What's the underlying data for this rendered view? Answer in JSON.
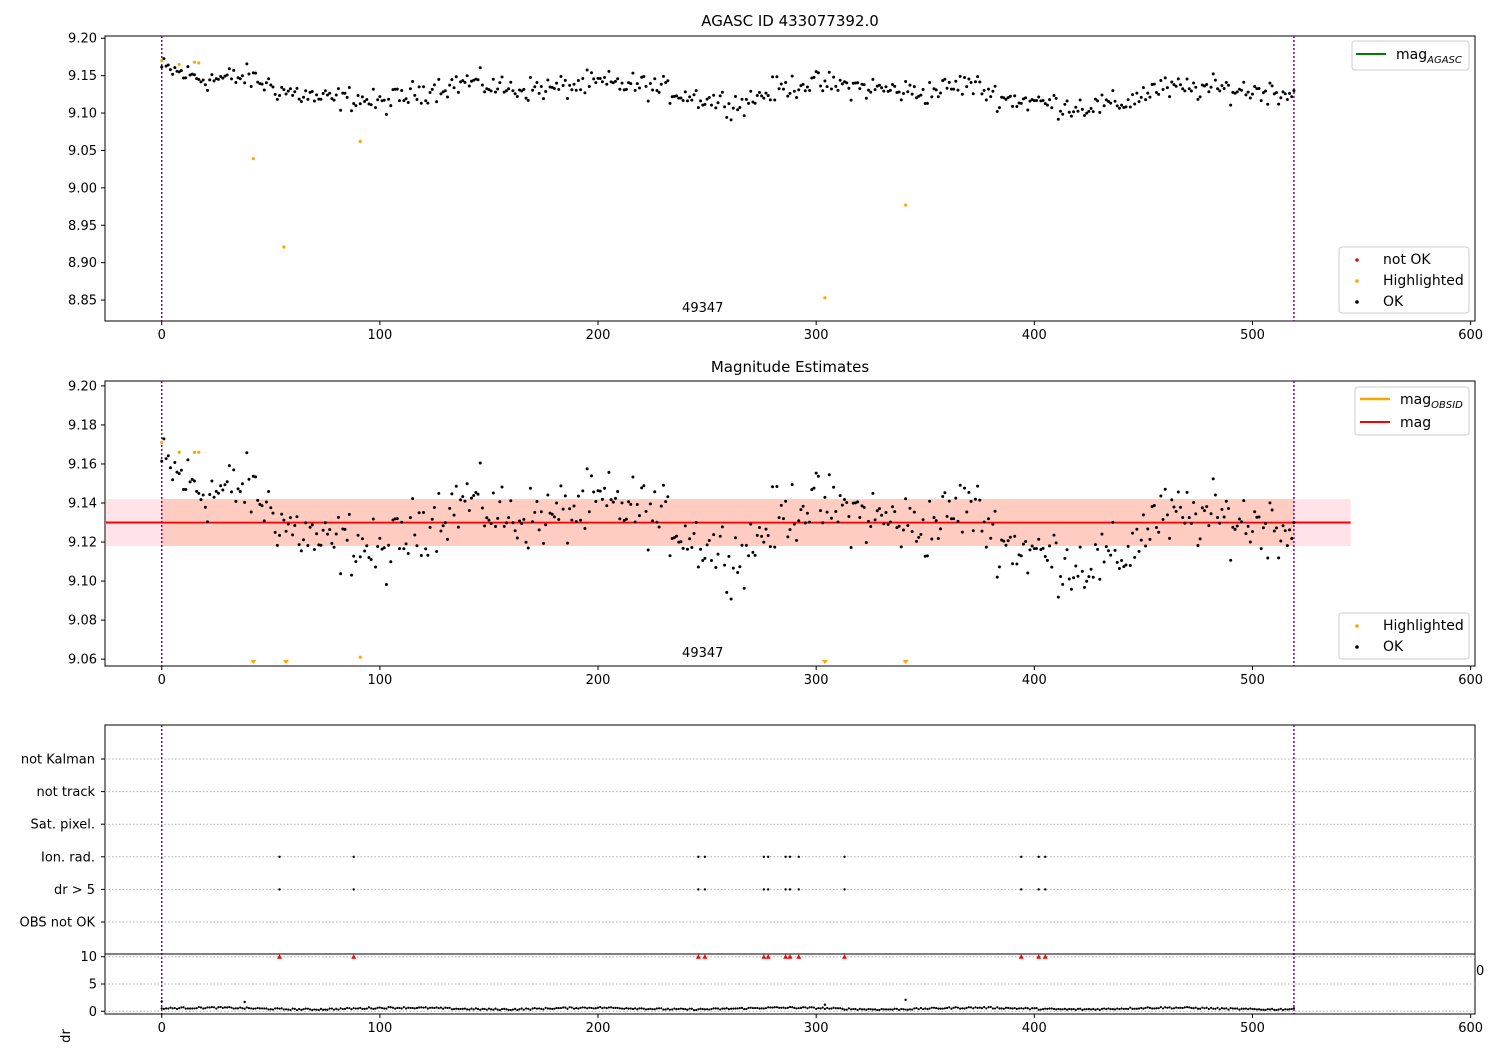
{
  "chart_data": [
    {
      "type": "scatter",
      "title": "AGASC ID 433077392.0",
      "xlabel": "",
      "ylabel": "",
      "xlim": [
        -26,
        602
      ],
      "ylim": [
        8.822,
        9.203
      ],
      "xticks": [
        0,
        100,
        200,
        300,
        400,
        500,
        600
      ],
      "yticks": [
        8.85,
        8.9,
        8.95,
        9.0,
        9.05,
        9.1,
        9.15,
        9.2
      ],
      "yfmt": 2,
      "vlines": [
        0,
        519
      ],
      "annotation": {
        "x": 248,
        "text": "49347"
      },
      "legend_top": {
        "placement": "top-right",
        "entries": [
          {
            "label": "mag",
            "sub": "AGASC",
            "color": "#008000"
          }
        ]
      },
      "legend_bottom": {
        "placement": "bottom-right",
        "entries": [
          {
            "label": "not OK",
            "color": "#ff0000"
          },
          {
            "label": "Highlighted",
            "color": "#ffa500"
          },
          {
            "label": "OK",
            "color": "#000000"
          }
        ]
      },
      "highlighted": [
        [
          0,
          9.17
        ],
        [
          8,
          9.165
        ],
        [
          15,
          9.168
        ],
        [
          17,
          9.167
        ],
        [
          42,
          9.039
        ],
        [
          56,
          8.921
        ],
        [
          91,
          9.062
        ],
        [
          304,
          8.853
        ],
        [
          341,
          8.977
        ]
      ],
      "ok_series": {
        "x_start": 0,
        "x_end": 519,
        "color": "#000000",
        "anchors": [
          [
            0,
            9.16
          ],
          [
            20,
            9.145
          ],
          [
            40,
            9.148
          ],
          [
            55,
            9.13
          ],
          [
            75,
            9.118
          ],
          [
            90,
            9.12
          ],
          [
            100,
            9.112
          ],
          [
            120,
            9.13
          ],
          [
            140,
            9.142
          ],
          [
            160,
            9.132
          ],
          [
            180,
            9.133
          ],
          [
            200,
            9.14
          ],
          [
            220,
            9.137
          ],
          [
            235,
            9.128
          ],
          [
            250,
            9.118
          ],
          [
            265,
            9.112
          ],
          [
            280,
            9.13
          ],
          [
            295,
            9.14
          ],
          [
            310,
            9.137
          ],
          [
            330,
            9.132
          ],
          [
            350,
            9.127
          ],
          [
            370,
            9.14
          ],
          [
            385,
            9.12
          ],
          [
            400,
            9.115
          ],
          [
            420,
            9.108
          ],
          [
            440,
            9.112
          ],
          [
            455,
            9.132
          ],
          [
            480,
            9.133
          ],
          [
            519,
            9.127
          ]
        ]
      }
    },
    {
      "type": "scatter",
      "title": "Magnitude Estimates",
      "xlabel": "",
      "ylabel": "",
      "xlim": [
        -26,
        602
      ],
      "ylim": [
        9.0565,
        9.2025
      ],
      "xticks": [
        0,
        100,
        200,
        300,
        400,
        500,
        600
      ],
      "yticks": [
        9.06,
        9.08,
        9.1,
        9.12,
        9.14,
        9.16,
        9.18,
        9.2
      ],
      "yfmt": 2,
      "vlines": [
        0,
        519
      ],
      "annotation": {
        "x": 248,
        "text": "49347"
      },
      "mag_line": {
        "y": 9.13,
        "band": [
          9.118,
          9.142
        ],
        "x_range": [
          -26,
          545
        ],
        "color": "#ff0000"
      },
      "legend_top": {
        "placement": "top-right",
        "entries": [
          {
            "label": "mag",
            "sub": "OBSID",
            "color": "#ffa500"
          },
          {
            "label": "mag",
            "sub": "",
            "color": "#ff0000"
          }
        ]
      },
      "legend_bottom": {
        "placement": "bottom-right",
        "entries": [
          {
            "label": "Highlighted",
            "color": "#ffa500"
          },
          {
            "label": "OK",
            "color": "#000000"
          }
        ]
      },
      "highlighted": [
        [
          0,
          9.171
        ],
        [
          8,
          9.166
        ],
        [
          15,
          9.166
        ],
        [
          17,
          9.166
        ],
        [
          91,
          9.061
        ]
      ],
      "below_range_markers": [
        42,
        57,
        304,
        341
      ],
      "ok_series": {
        "x_start": 0,
        "x_end": 519,
        "color": "#000000",
        "anchors": [
          [
            0,
            9.16
          ],
          [
            20,
            9.145
          ],
          [
            40,
            9.148
          ],
          [
            55,
            9.13
          ],
          [
            75,
            9.118
          ],
          [
            90,
            9.12
          ],
          [
            100,
            9.112
          ],
          [
            120,
            9.13
          ],
          [
            140,
            9.142
          ],
          [
            160,
            9.132
          ],
          [
            180,
            9.133
          ],
          [
            200,
            9.14
          ],
          [
            220,
            9.137
          ],
          [
            235,
            9.128
          ],
          [
            250,
            9.118
          ],
          [
            265,
            9.112
          ],
          [
            280,
            9.13
          ],
          [
            295,
            9.14
          ],
          [
            310,
            9.137
          ],
          [
            330,
            9.132
          ],
          [
            350,
            9.127
          ],
          [
            370,
            9.14
          ],
          [
            385,
            9.12
          ],
          [
            400,
            9.115
          ],
          [
            420,
            9.108
          ],
          [
            440,
            9.112
          ],
          [
            455,
            9.132
          ],
          [
            480,
            9.133
          ],
          [
            519,
            9.127
          ]
        ]
      }
    },
    {
      "type": "scatter",
      "title": "",
      "xlabel": "",
      "ylabel": "",
      "xlim": [
        -26,
        602
      ],
      "categories": [
        "not Kalman",
        "not track",
        "Sat. pixel.",
        "Ion. rad.",
        "dr > 5",
        "OBS not OK"
      ],
      "vlines": [
        0,
        519
      ],
      "flag_points": {
        "Ion. rad.": [
          54,
          88,
          246,
          249,
          276,
          278,
          286,
          288,
          292,
          313,
          394,
          402,
          405
        ],
        "dr > 5": [
          54,
          88,
          246,
          249,
          276,
          278,
          286,
          288,
          292,
          313,
          394,
          402,
          405
        ]
      },
      "dr_panel": {
        "ylabel": "dr",
        "ylim": [
          -0.5,
          10.5
        ],
        "yticks": [
          0,
          5,
          10
        ],
        "overflow_markers": {
          "y": 10,
          "x": [
            54,
            88,
            246,
            249,
            276,
            278,
            286,
            288,
            292,
            313,
            394,
            402,
            405
          ],
          "color": "#ff0000"
        },
        "outliers": [
          [
            0,
            1.8
          ],
          [
            38,
            1.7
          ],
          [
            341,
            2.1
          ],
          [
            304,
            1.2
          ]
        ],
        "baseline": {
          "x_start": 0,
          "x_end": 519,
          "level": 0.5,
          "amp": 0.3
        }
      },
      "stray_label": "0"
    }
  ]
}
